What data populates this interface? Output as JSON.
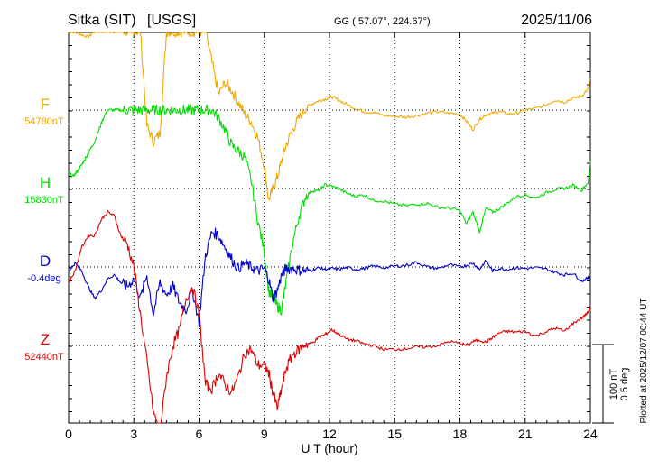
{
  "header": {
    "station": "Sitka (SIT)",
    "source": "[USGS]",
    "coords": "GG ( 57.07°, 224.67°)",
    "date": "2025/11/06"
  },
  "plot_note": "Plotted at 2025/12/07 00:44 UT",
  "scale": {
    "nt": "100 nT",
    "deg": "0.5 deg"
  },
  "colors": {
    "F": "#f0a800",
    "H": "#00dd00",
    "D": "#0000cc",
    "Z": "#dd0000",
    "grid": "#000000"
  },
  "chart_data": {
    "type": "line",
    "title": "Sitka (SIT)  [USGS]",
    "xlabel": "U T (hour)",
    "xlim": [
      0,
      24
    ],
    "xticks": [
      0,
      3,
      6,
      9,
      12,
      15,
      18,
      21,
      24
    ],
    "y_units": "offset from baseline in nT (D in deg)",
    "series": [
      {
        "name": "F",
        "baseline_label": "54780nT",
        "x": [
          0,
          0.3,
          0.6,
          0.9,
          1.2,
          1.5,
          1.8,
          2.1,
          2.4,
          2.7,
          3.0,
          3.3,
          3.6,
          3.9,
          4.2,
          4.5,
          4.8,
          5.1,
          5.4,
          5.7,
          6.0,
          6.3,
          6.6,
          6.9,
          7.2,
          7.5,
          7.8,
          8.1,
          8.4,
          8.7,
          9.0,
          9.2,
          9.4,
          9.6,
          9.8,
          10.0,
          10.3,
          10.6,
          10.9,
          11.2,
          11.5,
          11.8,
          12.1,
          12.4,
          12.8,
          13.2,
          13.6,
          14.0,
          14.5,
          15.0,
          15.5,
          16.0,
          16.5,
          17.0,
          17.5,
          18.0,
          18.3,
          18.6,
          18.9,
          19.2,
          19.5,
          19.8,
          20.2,
          20.6,
          21.0,
          21.5,
          22.0,
          22.4,
          22.8,
          23.2,
          23.6,
          23.9,
          24.0
        ],
        "values": [
          100,
          99,
          96,
          93,
          100,
          100,
          100,
          100,
          100,
          100,
          100,
          100,
          -20,
          -40,
          -30,
          100,
          100,
          100,
          100,
          100,
          100,
          100,
          60,
          20,
          35,
          25,
          10,
          -5,
          -15,
          -35,
          -70,
          -115,
          -100,
          -85,
          -65,
          -45,
          -25,
          -10,
          3,
          8,
          12,
          14,
          17,
          13,
          7,
          2,
          -2,
          -3,
          -7,
          -8,
          -9,
          -7,
          -4,
          -2,
          -4,
          -5,
          -14,
          -25,
          -12,
          -6,
          -4,
          -2,
          -5,
          -4,
          0,
          2,
          7,
          13,
          10,
          15,
          18,
          27,
          40
        ]
      },
      {
        "name": "H",
        "baseline_label": "15830nT",
        "x": [
          0,
          0.2,
          0.4,
          0.6,
          0.8,
          1.0,
          1.2,
          1.4,
          1.6,
          1.8,
          2.1,
          2.4,
          2.7,
          3.0,
          3.3,
          3.6,
          3.9,
          4.2,
          4.5,
          4.8,
          5.1,
          5.4,
          5.7,
          6.0,
          6.3,
          6.6,
          6.9,
          7.2,
          7.5,
          7.8,
          8.1,
          8.4,
          8.7,
          9.0,
          9.2,
          9.4,
          9.6,
          9.8,
          10.0,
          10.3,
          10.6,
          10.9,
          11.2,
          11.5,
          11.8,
          12.1,
          12.4,
          12.8,
          13.2,
          13.6,
          14.0,
          14.5,
          15.0,
          15.5,
          16.0,
          16.5,
          17.0,
          17.5,
          18.0,
          18.3,
          18.6,
          18.9,
          19.2,
          19.5,
          19.8,
          20.2,
          20.6,
          21.0,
          21.5,
          22.0,
          22.4,
          22.8,
          23.2,
          23.6,
          23.9,
          24.0
        ],
        "values": [
          20,
          15,
          22,
          30,
          40,
          50,
          60,
          75,
          90,
          100,
          100,
          100,
          100,
          100,
          100,
          100,
          100,
          100,
          100,
          100,
          100,
          100,
          100,
          100,
          100,
          100,
          90,
          75,
          55,
          48,
          40,
          10,
          -40,
          -80,
          -130,
          -140,
          -150,
          -155,
          -120,
          -70,
          -35,
          -10,
          -3,
          -3,
          5,
          3,
          0,
          -6,
          -10,
          -8,
          -15,
          -16,
          -20,
          -22,
          -20,
          -19,
          -24,
          -25,
          -28,
          -45,
          -30,
          -55,
          -25,
          -30,
          -26,
          -18,
          -10,
          -8,
          -12,
          -5,
          -1,
          0,
          4,
          -2,
          8,
          35
        ]
      },
      {
        "name": "D",
        "baseline_label": "-0.4deg",
        "x": [
          0,
          0.3,
          0.6,
          0.9,
          1.2,
          1.5,
          1.8,
          2.1,
          2.4,
          2.7,
          3.0,
          3.3,
          3.6,
          3.9,
          4.2,
          4.5,
          4.8,
          5.1,
          5.4,
          5.7,
          6.0,
          6.3,
          6.6,
          6.9,
          7.2,
          7.5,
          7.8,
          8.1,
          8.4,
          8.7,
          9.0,
          9.2,
          9.4,
          9.6,
          9.8,
          10.0,
          10.3,
          10.6,
          10.9,
          11.2,
          11.5,
          11.8,
          12.1,
          12.4,
          12.8,
          13.2,
          13.6,
          14.0,
          14.5,
          15.0,
          15.5,
          16.0,
          16.5,
          17.0,
          17.5,
          18.0,
          18.3,
          18.6,
          18.9,
          19.2,
          19.5,
          19.8,
          20.2,
          20.6,
          21.0,
          21.5,
          22.0,
          22.4,
          22.8,
          23.2,
          23.6,
          23.9,
          24.0
        ],
        "values": [
          -5,
          5,
          -5,
          -25,
          -40,
          -30,
          -15,
          -10,
          -20,
          -25,
          -15,
          -40,
          -10,
          -60,
          -20,
          -35,
          -25,
          -45,
          -55,
          -30,
          -70,
          15,
          45,
          40,
          25,
          10,
          -2,
          5,
          0,
          -5,
          -2,
          -15,
          -40,
          -30,
          -10,
          -2,
          -2,
          -4,
          -5,
          -4,
          -1,
          -3,
          -2,
          -3,
          -1,
          -3,
          -2,
          1,
          -1,
          1,
          2,
          6,
          0,
          -2,
          3,
          0,
          2,
          5,
          -3,
          8,
          -5,
          -2,
          -3,
          -1,
          -2,
          -1,
          -3,
          -7,
          -10,
          -8,
          -18,
          -14,
          -12
        ]
      },
      {
        "name": "Z",
        "baseline_label": "52440nT",
        "x": [
          0,
          0.3,
          0.6,
          0.9,
          1.2,
          1.5,
          1.8,
          2.1,
          2.4,
          2.7,
          3.0,
          3.3,
          3.6,
          3.9,
          4.2,
          4.5,
          4.8,
          5.1,
          5.4,
          5.7,
          6.0,
          6.3,
          6.6,
          6.9,
          7.2,
          7.5,
          7.8,
          8.1,
          8.4,
          8.7,
          9.0,
          9.2,
          9.4,
          9.6,
          9.8,
          10.0,
          10.3,
          10.6,
          10.9,
          11.2,
          11.5,
          11.8,
          12.1,
          12.4,
          12.8,
          13.2,
          13.6,
          14.0,
          14.5,
          15.0,
          15.5,
          16.0,
          16.5,
          17.0,
          17.5,
          18.0,
          18.3,
          18.6,
          18.9,
          19.2,
          19.5,
          19.8,
          20.2,
          20.6,
          21.0,
          21.5,
          22.0,
          22.4,
          22.8,
          23.2,
          23.6,
          23.9,
          24.0
        ],
        "values": [
          80,
          95,
          125,
          140,
          140,
          160,
          170,
          165,
          140,
          130,
          100,
          40,
          -20,
          -85,
          -110,
          -40,
          0,
          20,
          60,
          75,
          40,
          -50,
          -55,
          -35,
          -50,
          -60,
          -40,
          -10,
          -5,
          -25,
          -25,
          -35,
          -60,
          -80,
          -55,
          -30,
          -12,
          -5,
          2,
          3,
          10,
          14,
          20,
          15,
          8,
          6,
          2,
          0,
          -5,
          -5,
          -4,
          -2,
          -2,
          0,
          5,
          3,
          0,
          5,
          7,
          4,
          10,
          16,
          18,
          17,
          18,
          12,
          18,
          22,
          18,
          28,
          35,
          42,
          52
        ]
      }
    ]
  }
}
